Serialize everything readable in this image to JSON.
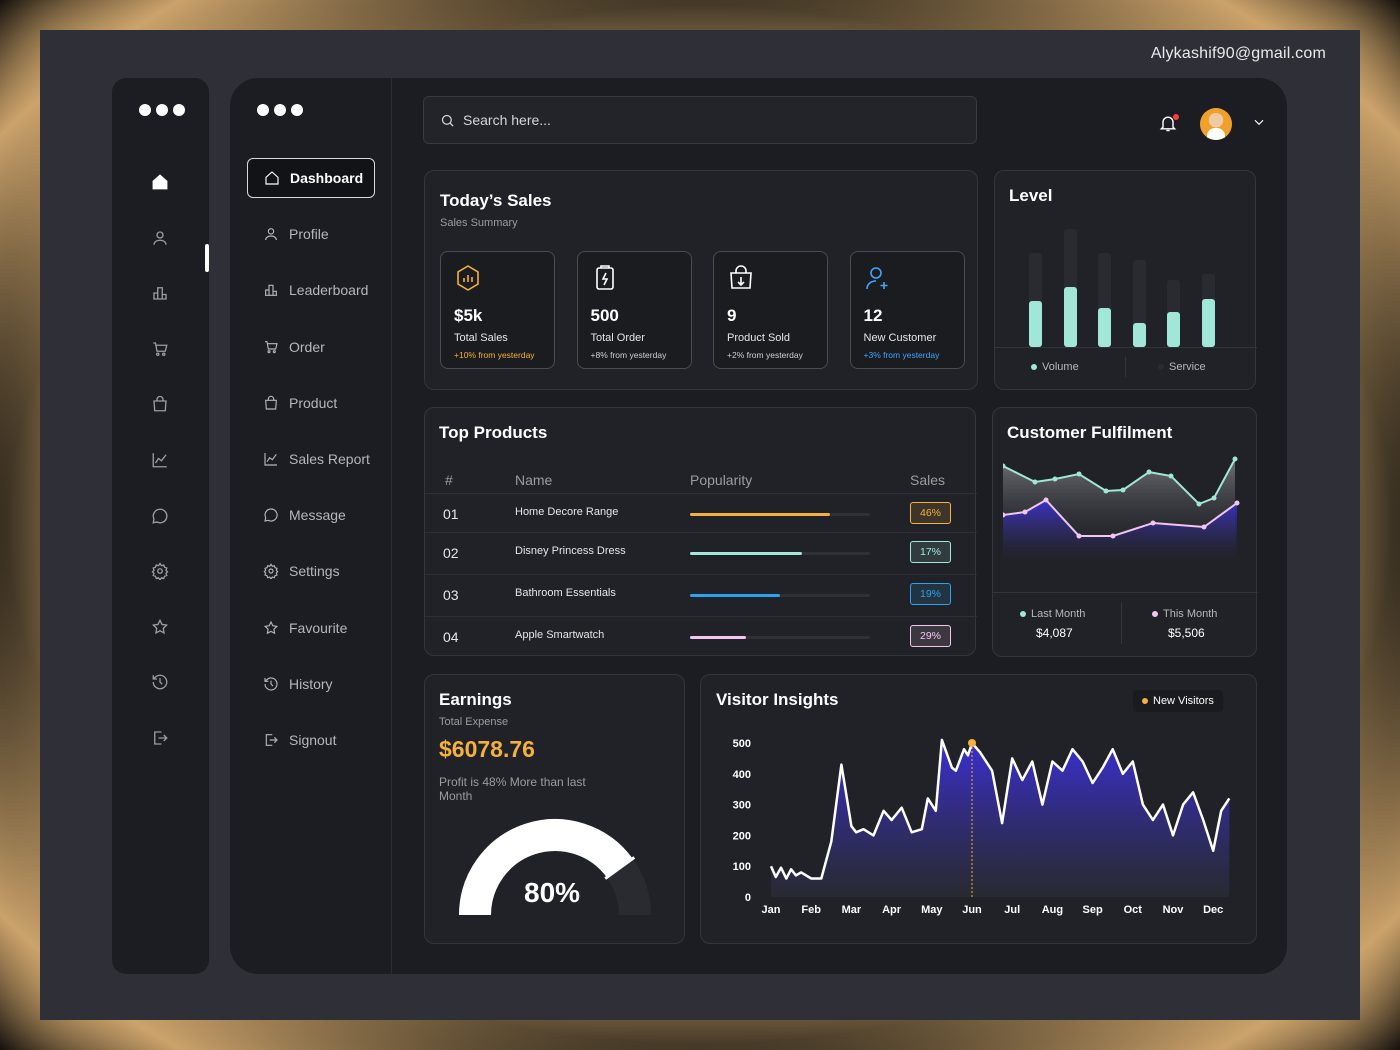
{
  "header": {
    "email": "Alykashif90@gmail.com"
  },
  "search": {
    "placeholder": "Search here..."
  },
  "nav": {
    "items": [
      {
        "label": "Dashboard",
        "icon": "home-icon",
        "active": true
      },
      {
        "label": "Profile",
        "icon": "user-icon"
      },
      {
        "label": "Leaderboard",
        "icon": "leaderboard-icon"
      },
      {
        "label": "Order",
        "icon": "cart-icon"
      },
      {
        "label": "Product",
        "icon": "bag-icon"
      },
      {
        "label": "Sales Report",
        "icon": "chart-line-icon"
      },
      {
        "label": "Message",
        "icon": "message-icon"
      },
      {
        "label": "Settings",
        "icon": "gear-icon"
      },
      {
        "label": "Favourite",
        "icon": "star-icon"
      },
      {
        "label": "History",
        "icon": "history-icon"
      },
      {
        "label": "Signout",
        "icon": "signout-icon"
      }
    ]
  },
  "todays_sales": {
    "title": "Today’s Sales",
    "subtitle": "Sales Summary",
    "tiles": [
      {
        "value": "$5k",
        "label": "Total Sales",
        "change": "+10% from yesterday",
        "color": "#f5b13d",
        "icon": "chart-hexagon-icon"
      },
      {
        "value": "500",
        "label": "Total Order",
        "change": "+8% from yesterday",
        "color": "#ffffff",
        "icon": "clipboard-bolt-icon"
      },
      {
        "value": "9",
        "label": "Product Sold",
        "change": "+2% from yesterday",
        "color": "#ffffff",
        "icon": "bag-download-icon"
      },
      {
        "value": "12",
        "label": "New Customer",
        "change": "+3% from yesterday",
        "color": "#3ea6ff",
        "icon": "user-add-icon"
      }
    ]
  },
  "level": {
    "title": "Level",
    "legend": [
      "Volume",
      "Service"
    ],
    "volume": [
      0.39,
      0.51,
      0.33,
      0.2,
      0.3,
      0.41
    ],
    "service": [
      0.8,
      1.0,
      0.8,
      0.74,
      0.57,
      0.62
    ],
    "colors": {
      "volume": "#a0e7d9",
      "service": "#2a2b31"
    }
  },
  "top_products": {
    "title": "Top Products",
    "headers": [
      "#",
      "Name",
      "Popularity",
      "Sales"
    ],
    "rows": [
      {
        "num": "01",
        "name": "Home Decore Range",
        "pop": 0.78,
        "sales": "46%",
        "color": "#f5b13d"
      },
      {
        "num": "02",
        "name": "Disney Princess Dress",
        "pop": 0.62,
        "sales": "17%",
        "color": "#a0e7e0"
      },
      {
        "num": "03",
        "name": "Bathroom Essentials",
        "pop": 0.5,
        "sales": "19%",
        "color": "#2aa4ef"
      },
      {
        "num": "04",
        "name": "Apple Smartwatch",
        "pop": 0.31,
        "sales": "29%",
        "color": "#f3c6f0"
      }
    ]
  },
  "fulfilment": {
    "title": "Customer Fulfilment",
    "last_label": "Last Month",
    "last_value": "$4,087",
    "this_label": "This Month",
    "this_value": "$5,506",
    "last_color": "#a0e7d9",
    "this_color": "#f3c6f0"
  },
  "earnings": {
    "title": "Earnings",
    "subtitle": "Total Expense",
    "amount": "$6078.76",
    "note": "Profit is 48% More than last Month",
    "gauge_value": "80%",
    "gauge_fraction": 0.8,
    "accent": "#f5b13d"
  },
  "chart_data": {
    "type": "area",
    "title": "Visitor Insights",
    "legend": [
      "New Visitors"
    ],
    "categories": [
      "Jan",
      "Feb",
      "Mar",
      "Apr",
      "May",
      "Jun",
      "Jul",
      "Aug",
      "Sep",
      "Oct",
      "Nov",
      "Dec"
    ],
    "ylim": [
      0,
      500
    ],
    "yticks": [
      0,
      100,
      200,
      300,
      400,
      500
    ],
    "series": [
      {
        "name": "New Visitors",
        "x": [
          0,
          0.12,
          0.25,
          0.38,
          0.5,
          0.62,
          0.75,
          1,
          1.25,
          1.5,
          1.75,
          2,
          2.12,
          2.3,
          2.55,
          2.8,
          3,
          3.25,
          3.5,
          3.75,
          3.9,
          4.1,
          4.25,
          4.5,
          4.6,
          4.8,
          4.9,
          5,
          5.2,
          5.5,
          5.75,
          6,
          6.25,
          6.5,
          6.75,
          7,
          7.25,
          7.5,
          7.75,
          8,
          8.25,
          8.5,
          8.75,
          9,
          9.25,
          9.5,
          9.75,
          10,
          10.25,
          10.5,
          10.75,
          11,
          11.2,
          11.4
        ],
        "values": [
          100,
          65,
          95,
          60,
          90,
          70,
          80,
          60,
          60,
          180,
          430,
          230,
          210,
          220,
          200,
          280,
          250,
          290,
          210,
          220,
          320,
          280,
          510,
          420,
          410,
          480,
          460,
          500,
          470,
          410,
          240,
          450,
          380,
          440,
          300,
          440,
          410,
          480,
          440,
          370,
          420,
          480,
          400,
          440,
          300,
          250,
          300,
          200,
          300,
          340,
          250,
          150,
          280,
          320
        ]
      }
    ],
    "highlight": {
      "category": "Jun",
      "value": 500
    },
    "colors": {
      "line": "#ffffff",
      "fill_top": "#3a2fd4",
      "fill_bottom": "#2b2d36",
      "marker": "#f5b13d"
    }
  }
}
